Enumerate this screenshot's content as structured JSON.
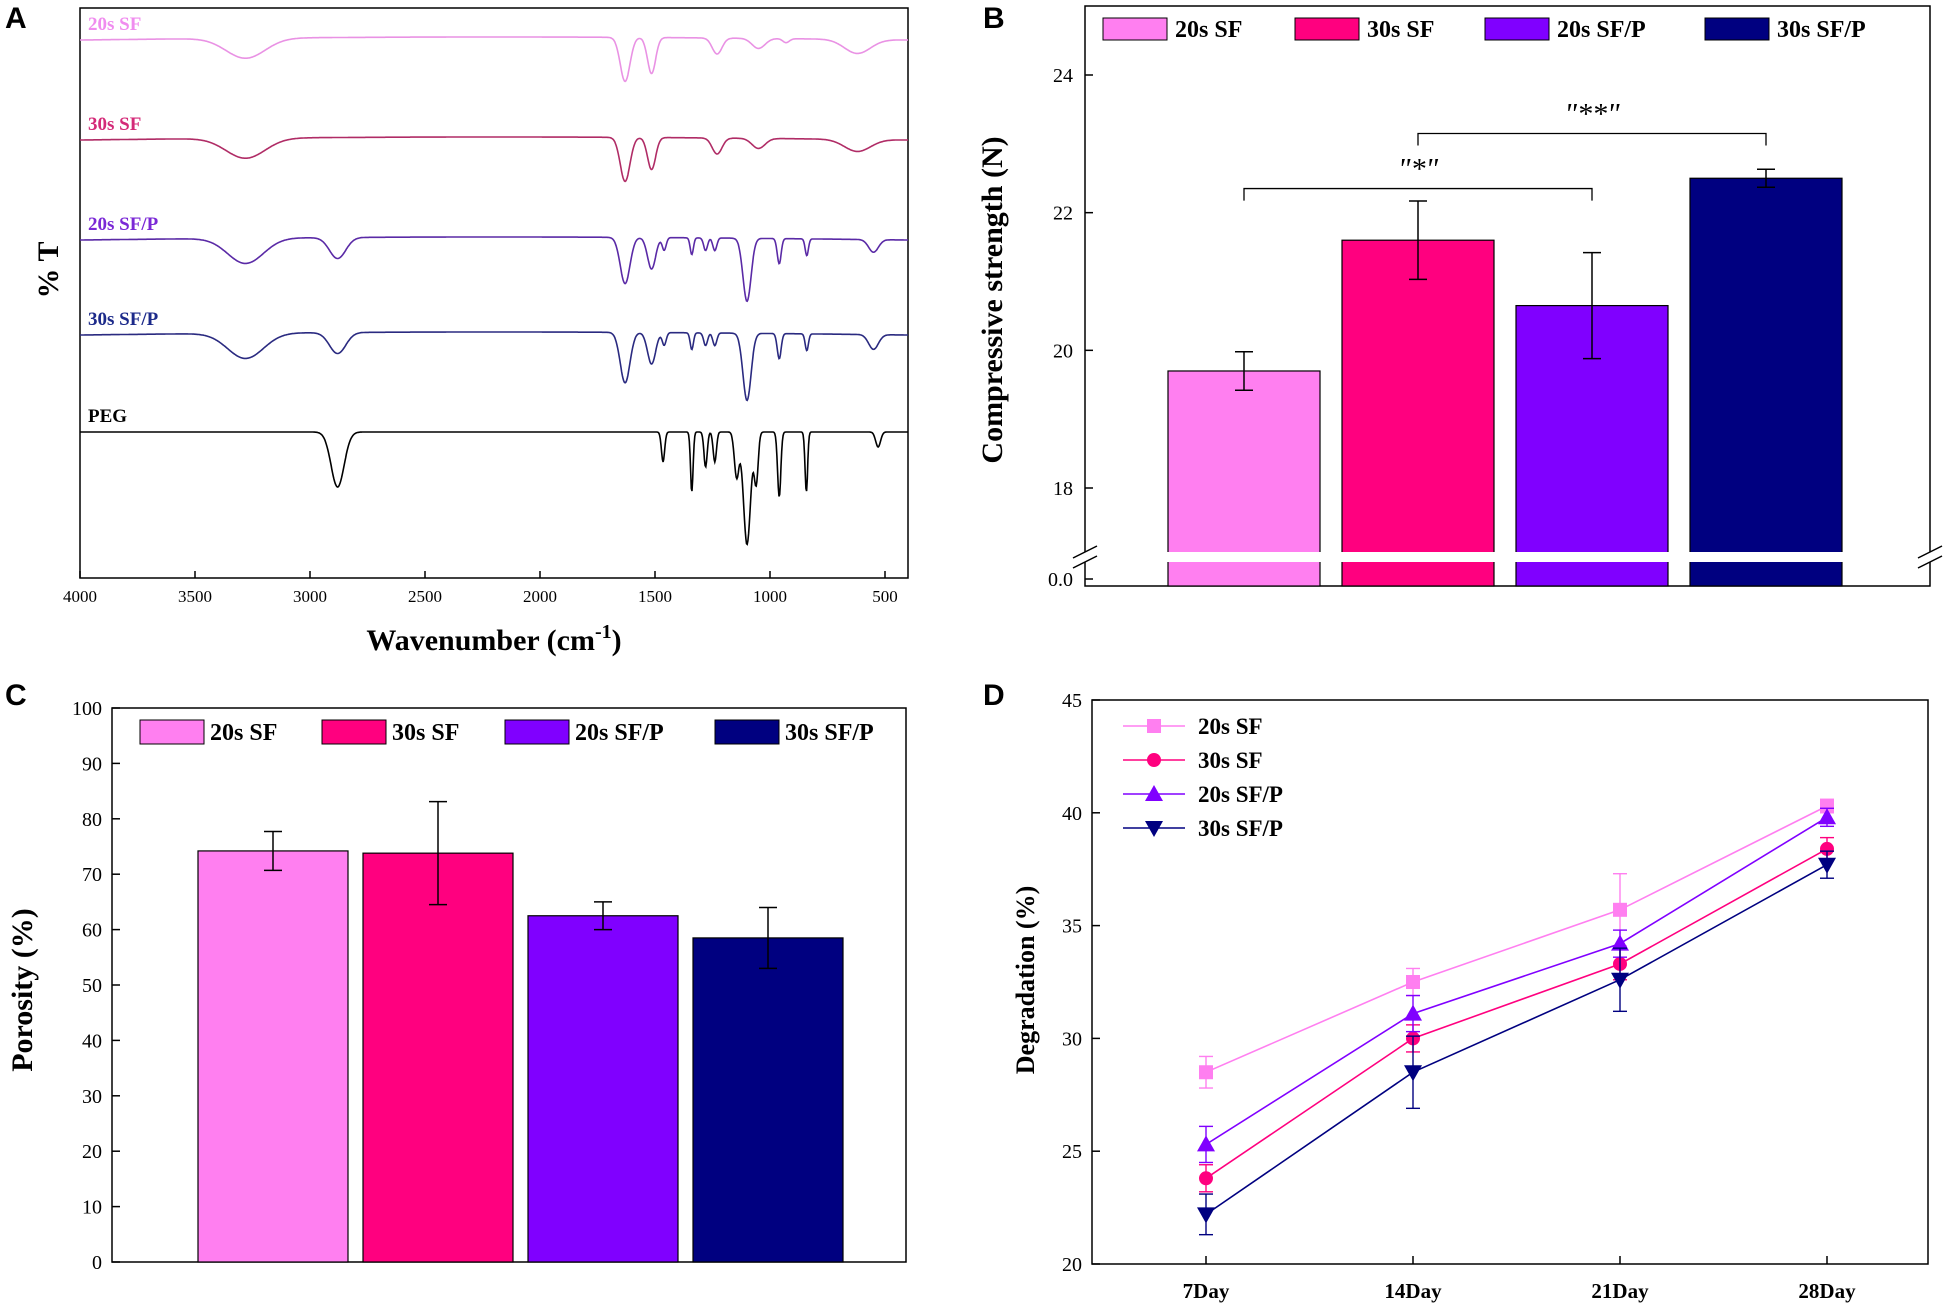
{
  "figure": {
    "panels": [
      {
        "letter": "A"
      },
      {
        "letter": "B"
      },
      {
        "letter": "C"
      },
      {
        "letter": "D"
      }
    ]
  },
  "colors": {
    "20s SF": "#FF7FF0",
    "30s SF": "#FF007F",
    "20s SF/P": "#8000FF",
    "30s SF/P": "#000080",
    "PEG": "#000000",
    "ftir_20s_SF_line": "#E992E4",
    "ftir_30s_SF_line": "#B02C66",
    "ftir_20s_SF/P_line": "#5A2AA6",
    "ftir_30s_SF/P_line": "#2A2A80",
    "ftir_20s_SF_label": "#F08CEF",
    "ftir_30s_SF_label": "#D42A78",
    "ftir_20s_SF/P_label": "#7A28D6",
    "ftir_30s_SF/P_label": "#1C2A8A"
  },
  "chart_data": [
    {
      "panel": "A",
      "type": "line",
      "title": "",
      "xlabel": "Wavenumber (cm",
      "xlabel_sup": "-1",
      "xlabel_end": ")",
      "ylabel": "% T",
      "xlim": [
        4000,
        400
      ],
      "xticks": [
        4000,
        3500,
        3000,
        2500,
        2000,
        1500,
        1000,
        500
      ],
      "series": [
        {
          "name": "20s SF",
          "baseline": 0.0,
          "dips": [
            [
              3280,
              0.1,
              120
            ],
            [
              1630,
              0.22,
              30
            ],
            [
              1515,
              0.18,
              25
            ],
            [
              1230,
              0.08,
              30
            ],
            [
              1050,
              0.05,
              40
            ],
            [
              930,
              0.02,
              20
            ],
            [
              620,
              0.07,
              80
            ]
          ],
          "drift": 0.03
        },
        {
          "name": "30s SF",
          "baseline": 0.0,
          "dips": [
            [
              3280,
              0.1,
              120
            ],
            [
              1630,
              0.22,
              30
            ],
            [
              1515,
              0.16,
              25
            ],
            [
              1230,
              0.08,
              30
            ],
            [
              1050,
              0.05,
              40
            ],
            [
              620,
              0.06,
              80
            ]
          ],
          "drift": 0.03
        },
        {
          "name": "20s SF/P",
          "baseline": 0.0,
          "dips": [
            [
              3280,
              0.12,
              110
            ],
            [
              2880,
              0.1,
              50
            ],
            [
              1630,
              0.22,
              30
            ],
            [
              1515,
              0.15,
              25
            ],
            [
              1460,
              0.06,
              12
            ],
            [
              1340,
              0.08,
              10
            ],
            [
              1280,
              0.06,
              12
            ],
            [
              1240,
              0.06,
              12
            ],
            [
              1100,
              0.3,
              25
            ],
            [
              960,
              0.12,
              12
            ],
            [
              840,
              0.08,
              10
            ],
            [
              550,
              0.06,
              30
            ]
          ],
          "drift": 0.03
        },
        {
          "name": "30s SF/P",
          "baseline": 0.0,
          "dips": [
            [
              3280,
              0.12,
              110
            ],
            [
              2880,
              0.1,
              50
            ],
            [
              1630,
              0.24,
              30
            ],
            [
              1515,
              0.15,
              25
            ],
            [
              1460,
              0.06,
              12
            ],
            [
              1340,
              0.08,
              10
            ],
            [
              1280,
              0.06,
              12
            ],
            [
              1240,
              0.06,
              12
            ],
            [
              1100,
              0.32,
              25
            ],
            [
              960,
              0.12,
              12
            ],
            [
              840,
              0.08,
              10
            ],
            [
              550,
              0.07,
              30
            ]
          ],
          "drift": 0.03
        },
        {
          "name": "PEG",
          "baseline": 0.0,
          "dips": [
            [
              2880,
              0.22,
              40
            ],
            [
              1465,
              0.12,
              10
            ],
            [
              1340,
              0.24,
              8
            ],
            [
              1280,
              0.14,
              10
            ],
            [
              1240,
              0.12,
              10
            ],
            [
              1145,
              0.18,
              14
            ],
            [
              1100,
              0.45,
              22
            ],
            [
              1060,
              0.2,
              12
            ],
            [
              960,
              0.26,
              10
            ],
            [
              842,
              0.24,
              8
            ],
            [
              530,
              0.06,
              15
            ]
          ],
          "drift": 0.0
        }
      ]
    },
    {
      "panel": "B",
      "type": "bar",
      "title": "",
      "xlabel": "",
      "ylabel": "Compressive strength (N)",
      "ylim": [
        17.0,
        25.0
      ],
      "yticks": [
        18,
        20,
        22,
        24
      ],
      "ytick_labels": [
        "18",
        "20",
        "22",
        "24"
      ],
      "axis_break_label": "0.0",
      "categories": [
        "20s SF",
        "30s SF",
        "20s SF/P",
        "30s SF/P"
      ],
      "values": [
        19.7,
        21.6,
        20.65,
        22.5
      ],
      "errors": [
        0.28,
        0.57,
        0.77,
        0.13
      ],
      "legend": [
        "20s SF",
        "30s SF",
        "20s SF/P",
        "30s SF/P"
      ],
      "legend_position": "top",
      "annotations": [
        {
          "text": "\"*\"",
          "from": "20s SF",
          "to": "20s SF/P",
          "y": 22.35
        },
        {
          "text": "\"**\"",
          "from": "30s SF",
          "to": "30s SF/P",
          "y": 23.15
        }
      ]
    },
    {
      "panel": "C",
      "type": "bar",
      "title": "",
      "xlabel": "",
      "ylabel": "Porosity (%)",
      "ylim": [
        0,
        100
      ],
      "yticks": [
        0,
        10,
        20,
        30,
        40,
        50,
        60,
        70,
        80,
        90,
        100
      ],
      "categories": [
        "20s SF",
        "30s SF",
        "20s SF/P",
        "30s SF/P"
      ],
      "values": [
        74.2,
        73.8,
        62.5,
        58.5
      ],
      "errors": [
        3.5,
        9.3,
        2.5,
        5.5
      ],
      "legend": [
        "20s SF",
        "30s SF",
        "20s SF/P",
        "30s SF/P"
      ],
      "legend_position": "top"
    },
    {
      "panel": "D",
      "type": "line",
      "title": "",
      "xlabel": "",
      "ylabel": "Degradation (%)",
      "ylim": [
        20,
        45
      ],
      "yticks": [
        20,
        25,
        30,
        35,
        40,
        45
      ],
      "categories": [
        "7Day",
        "14Day",
        "21Day",
        "28Day"
      ],
      "legend_position": "top-left",
      "series": [
        {
          "name": "20s SF",
          "marker": "square",
          "values": [
            28.5,
            32.5,
            35.7,
            40.3
          ],
          "errors": [
            0.7,
            0.6,
            1.6,
            0.3
          ]
        },
        {
          "name": "30s SF",
          "marker": "circle",
          "values": [
            23.8,
            30.0,
            33.3,
            38.4
          ],
          "errors": [
            0.6,
            0.6,
            0.7,
            0.5
          ]
        },
        {
          "name": "20s SF/P",
          "marker": "triangle-up",
          "values": [
            25.3,
            31.1,
            34.2,
            39.8
          ],
          "errors": [
            0.8,
            0.8,
            0.6,
            0.4
          ]
        },
        {
          "name": "30s SF/P",
          "marker": "triangle-down",
          "values": [
            22.2,
            28.5,
            32.6,
            37.7
          ],
          "errors": [
            0.9,
            1.6,
            1.4,
            0.6
          ]
        }
      ]
    }
  ]
}
